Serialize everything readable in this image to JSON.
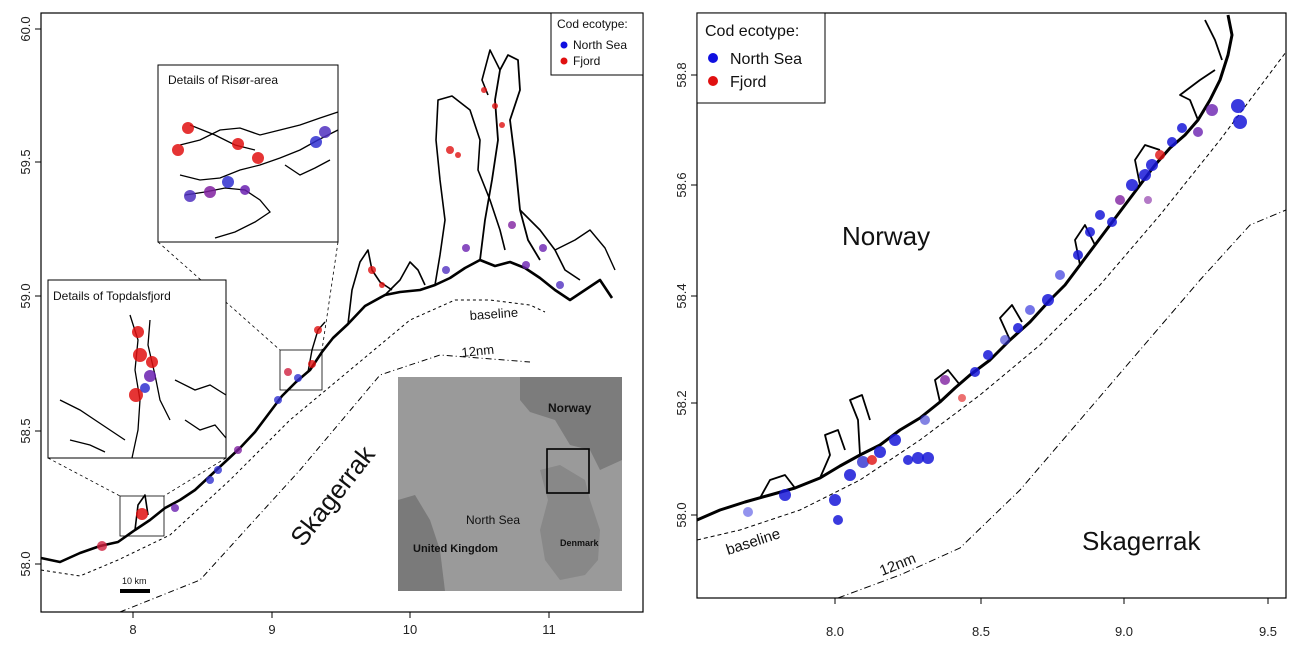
{
  "left_map": {
    "legend": {
      "title": "Cod ecotype:",
      "items": [
        {
          "label": "North Sea",
          "color": "#1010e0"
        },
        {
          "label": "Fjord",
          "color": "#e01010"
        }
      ]
    },
    "y_ticks": [
      "58.0",
      "58.5",
      "59.0",
      "59.5",
      "60.0"
    ],
    "x_ticks": [
      "8",
      "9",
      "10",
      "11"
    ],
    "inset_risor_title": "Details of Risør-area",
    "inset_topdal_title": "Details of Topdalsfjord",
    "baseline_label": "baseline",
    "nm12_label": "12nm",
    "skagerrak_label": "Skagerrak",
    "scale_label": "10 km",
    "overview_map": {
      "labels": {
        "norway": "Norway",
        "north_sea": "North Sea",
        "denmark": "Denmark",
        "uk": "United Kingdom"
      }
    }
  },
  "right_map": {
    "legend": {
      "title": "Cod ecotype:",
      "items": [
        {
          "label": "North Sea",
          "color": "#1010e0"
        },
        {
          "label": "Fjord",
          "color": "#e01010"
        }
      ]
    },
    "y_ticks": [
      "58.0",
      "58.2",
      "58.4",
      "58.6",
      "58.8"
    ],
    "x_ticks": [
      "8.0",
      "8.5",
      "9.0",
      "9.5"
    ],
    "norway_label": "Norway",
    "skagerrak_label": "Skagerrak",
    "baseline_label": "baseline",
    "nm12_label": "12nm"
  }
}
